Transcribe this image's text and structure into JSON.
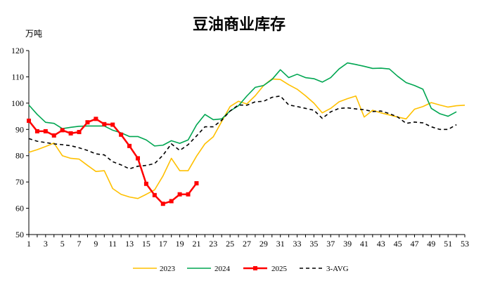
{
  "chart_data": {
    "type": "line",
    "title": "豆油商业库存",
    "ylabel": "万吨",
    "xlabel": "",
    "ylim": [
      50,
      120
    ],
    "yticks": [
      50,
      60,
      70,
      80,
      90,
      100,
      110,
      120
    ],
    "xlim": [
      1,
      53
    ],
    "xticks": [
      1,
      3,
      5,
      7,
      9,
      11,
      13,
      15,
      17,
      19,
      21,
      23,
      25,
      27,
      29,
      31,
      33,
      35,
      37,
      39,
      41,
      43,
      45,
      47,
      49,
      51,
      53
    ],
    "legend_position": "bottom",
    "series": [
      {
        "name": "2023",
        "color": "#FFC000",
        "style": "solid",
        "x": [
          1,
          2,
          3,
          4,
          5,
          6,
          7,
          8,
          9,
          10,
          11,
          12,
          13,
          14,
          15,
          16,
          17,
          18,
          19,
          20,
          21,
          22,
          23,
          24,
          25,
          26,
          27,
          28,
          29,
          30,
          31,
          32,
          33,
          34,
          35,
          36,
          37,
          38,
          39,
          40,
          41,
          42,
          43,
          44,
          45,
          46,
          47,
          48,
          49,
          50,
          51,
          52,
          53
        ],
        "values": [
          81.3,
          82.3,
          83.5,
          84.8,
          80.0,
          79.0,
          78.7,
          76.3,
          74.0,
          74.3,
          67.5,
          65.3,
          64.3,
          63.7,
          65.3,
          67.0,
          72.3,
          79.0,
          74.3,
          74.3,
          79.8,
          84.5,
          87.2,
          93.0,
          98.7,
          100.7,
          99.7,
          102.8,
          106.7,
          109.2,
          109.0,
          107.0,
          105.3,
          102.8,
          100.0,
          96.3,
          98.0,
          100.5,
          101.7,
          102.7,
          94.7,
          97.3,
          96.3,
          95.5,
          94.7,
          94.0,
          97.7,
          98.7,
          100.2,
          99.3,
          98.5,
          99.0,
          99.2
        ]
      },
      {
        "name": "2024",
        "color": "#00A651",
        "style": "solid",
        "x": [
          1,
          2,
          3,
          4,
          5,
          6,
          7,
          8,
          9,
          10,
          11,
          12,
          13,
          14,
          15,
          16,
          17,
          18,
          19,
          20,
          21,
          22,
          23,
          24,
          25,
          26,
          27,
          28,
          29,
          30,
          31,
          32,
          33,
          34,
          35,
          36,
          37,
          38,
          39,
          40,
          41,
          42,
          43,
          44,
          45,
          46,
          47,
          48,
          49,
          50,
          51,
          52
        ],
        "values": [
          99.3,
          95.7,
          92.7,
          92.3,
          90.3,
          90.8,
          91.2,
          91.3,
          91.3,
          91.3,
          89.7,
          88.7,
          87.3,
          87.3,
          86.0,
          83.7,
          84.0,
          85.7,
          84.7,
          86.0,
          91.7,
          95.7,
          93.7,
          94.0,
          97.0,
          99.0,
          102.7,
          106.0,
          106.7,
          109.0,
          112.7,
          109.7,
          111.0,
          109.7,
          109.3,
          108.0,
          109.7,
          113.0,
          115.3,
          114.7,
          114.0,
          113.2,
          113.3,
          113.0,
          110.2,
          107.8,
          106.7,
          105.3,
          98.0,
          96.0,
          95.0,
          96.7
        ]
      },
      {
        "name": "2025",
        "color": "#FF0000",
        "style": "solid",
        "markers": true,
        "x": [
          1,
          2,
          3,
          4,
          5,
          6,
          7,
          8,
          9,
          10,
          11,
          12,
          13,
          14,
          15,
          16,
          17,
          18,
          19,
          20,
          21
        ],
        "values": [
          93.3,
          89.3,
          89.3,
          87.7,
          89.7,
          88.5,
          89.0,
          92.7,
          94.0,
          92.0,
          91.8,
          88.0,
          83.7,
          79.0,
          69.3,
          65.0,
          61.7,
          62.7,
          65.3,
          65.3,
          69.5
        ]
      },
      {
        "name": "3-AVG",
        "color": "#000000",
        "style": "dashed",
        "x": [
          1,
          2,
          3,
          4,
          5,
          6,
          7,
          8,
          9,
          10,
          11,
          12,
          13,
          14,
          15,
          16,
          17,
          18,
          19,
          20,
          21,
          22,
          23,
          24,
          25,
          26,
          27,
          28,
          29,
          30,
          31,
          32,
          33,
          34,
          35,
          36,
          37,
          38,
          39,
          40,
          41,
          42,
          43,
          44,
          45,
          46,
          47,
          48,
          49,
          50,
          51,
          52
        ],
        "values": [
          86.5,
          85.5,
          85.0,
          84.5,
          84.2,
          83.8,
          83.0,
          82.0,
          80.7,
          80.3,
          77.7,
          76.5,
          75.0,
          76.0,
          76.3,
          77.0,
          80.2,
          84.5,
          82.0,
          84.2,
          87.5,
          91.0,
          91.0,
          93.5,
          97.0,
          99.3,
          99.2,
          100.5,
          100.7,
          102.2,
          102.7,
          99.3,
          98.7,
          98.0,
          97.3,
          94.2,
          96.7,
          98.0,
          98.2,
          97.8,
          97.5,
          96.8,
          97.0,
          96.0,
          94.7,
          92.3,
          92.8,
          92.5,
          91.0,
          90.0,
          90.0,
          91.8
        ]
      }
    ]
  }
}
